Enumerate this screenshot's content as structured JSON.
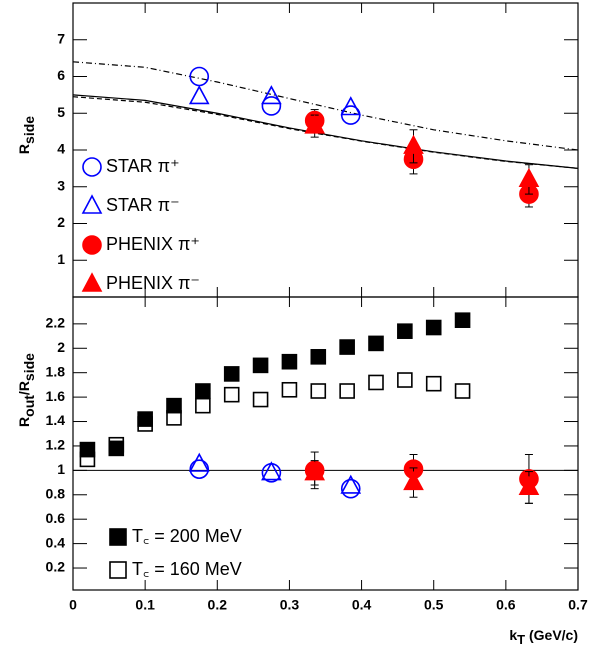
{
  "chart_data": [
    {
      "type": "scatter",
      "ylabel": [
        "R",
        "side"
      ],
      "xlim": [
        0,
        0.7
      ],
      "xticks": [
        0,
        0.1,
        0.2,
        0.3,
        0.4,
        0.5,
        0.6,
        0.7
      ],
      "ylim": [
        0,
        8
      ],
      "yticks": [
        1,
        2,
        3,
        4,
        5,
        6,
        7
      ],
      "series": [
        {
          "name": "STAR π⁺",
          "color": "#0000ff",
          "marker": "open-circle",
          "x": [
            0.175,
            0.275,
            0.385
          ],
          "values": [
            6.0,
            5.2,
            4.95
          ]
        },
        {
          "name": "STAR π⁻",
          "color": "#0000ff",
          "marker": "open-triangle",
          "x": [
            0.175,
            0.275,
            0.385
          ],
          "values": [
            5.45,
            5.45,
            5.15
          ]
        },
        {
          "name": "PHENIX π⁺",
          "color": "#ff0000",
          "marker": "circle",
          "x": [
            0.335,
            0.472,
            0.632
          ],
          "values": [
            4.8,
            3.75,
            2.8
          ],
          "errors": [
            0.3,
            0.4,
            0.35
          ]
        },
        {
          "name": "PHENIX π⁻",
          "color": "#ff0000",
          "marker": "triangle",
          "x": [
            0.335,
            0.472,
            0.632
          ],
          "values": [
            4.65,
            4.1,
            3.2
          ],
          "errors": [
            0.3,
            0.45,
            0.4
          ]
        }
      ],
      "curves": [
        {
          "dash": "solid",
          "x": [
            0,
            0.1,
            0.2,
            0.3,
            0.4,
            0.5,
            0.6,
            0.7
          ],
          "values": [
            5.5,
            5.35,
            5.0,
            4.6,
            4.25,
            3.95,
            3.7,
            3.5
          ]
        },
        {
          "dash": "dashed",
          "x": [
            0,
            0.1,
            0.2,
            0.3,
            0.4,
            0.5,
            0.6,
            0.7
          ],
          "values": [
            5.45,
            5.3,
            4.97,
            4.58,
            4.24,
            3.94,
            3.69,
            3.5
          ]
        },
        {
          "dash": "dashdot",
          "x": [
            0,
            0.1,
            0.2,
            0.3,
            0.4,
            0.5,
            0.6,
            0.7
          ],
          "values": [
            6.4,
            6.25,
            5.85,
            5.4,
            4.95,
            4.55,
            4.25,
            4.0
          ]
        }
      ]
    },
    {
      "type": "scatter",
      "ylabel": [
        "R",
        "out",
        "/R",
        "side"
      ],
      "xlabel": [
        "k",
        "T",
        " (GeV/c)"
      ],
      "xlim": [
        0,
        0.7
      ],
      "xticks": [
        0,
        0.1,
        0.2,
        0.3,
        0.4,
        0.5,
        0.6,
        0.7
      ],
      "ylim": [
        0.02,
        2.42
      ],
      "yticks": [
        0.2,
        0.4,
        0.6,
        0.8,
        1,
        1.2,
        1.4,
        1.6,
        1.8,
        2,
        2.2
      ],
      "hline": 1,
      "series": [
        {
          "name": "T꜀ = 200 MeV",
          "color": "#000000",
          "marker": "square",
          "x": [
            0.02,
            0.06,
            0.1,
            0.14,
            0.18,
            0.22,
            0.26,
            0.3,
            0.34,
            0.38,
            0.42,
            0.46,
            0.5,
            0.54
          ],
          "values": [
            1.17,
            1.18,
            1.42,
            1.53,
            1.65,
            1.79,
            1.86,
            1.89,
            1.93,
            2.01,
            2.04,
            2.14,
            2.17,
            2.23
          ]
        },
        {
          "name": "T꜀ = 160 MeV",
          "color": "#000000",
          "marker": "open-square",
          "x": [
            0.02,
            0.06,
            0.1,
            0.14,
            0.18,
            0.22,
            0.26,
            0.3,
            0.34,
            0.38,
            0.42,
            0.46,
            0.5,
            0.54
          ],
          "values": [
            1.09,
            1.21,
            1.38,
            1.43,
            1.53,
            1.62,
            1.58,
            1.66,
            1.65,
            1.65,
            1.72,
            1.74,
            1.71,
            1.65
          ]
        },
        {
          "color": "#0000ff",
          "marker": "open-circle",
          "x": [
            0.175,
            0.275,
            0.385
          ],
          "values": [
            1.01,
            0.98,
            0.85
          ]
        },
        {
          "color": "#0000ff",
          "marker": "open-triangle",
          "x": [
            0.175,
            0.275,
            0.385
          ],
          "values": [
            1.05,
            0.98,
            0.87
          ]
        },
        {
          "color": "#ff0000",
          "marker": "circle",
          "x": [
            0.335,
            0.472,
            0.632
          ],
          "values": [
            1.0,
            1.01,
            0.93
          ],
          "errors": [
            0.15,
            0.12,
            0.2
          ]
        },
        {
          "color": "#ff0000",
          "marker": "triangle",
          "x": [
            0.335,
            0.472,
            0.632
          ],
          "values": [
            0.98,
            0.9,
            0.86
          ],
          "errors": [
            0.1,
            0.12,
            0.13
          ]
        }
      ]
    }
  ]
}
